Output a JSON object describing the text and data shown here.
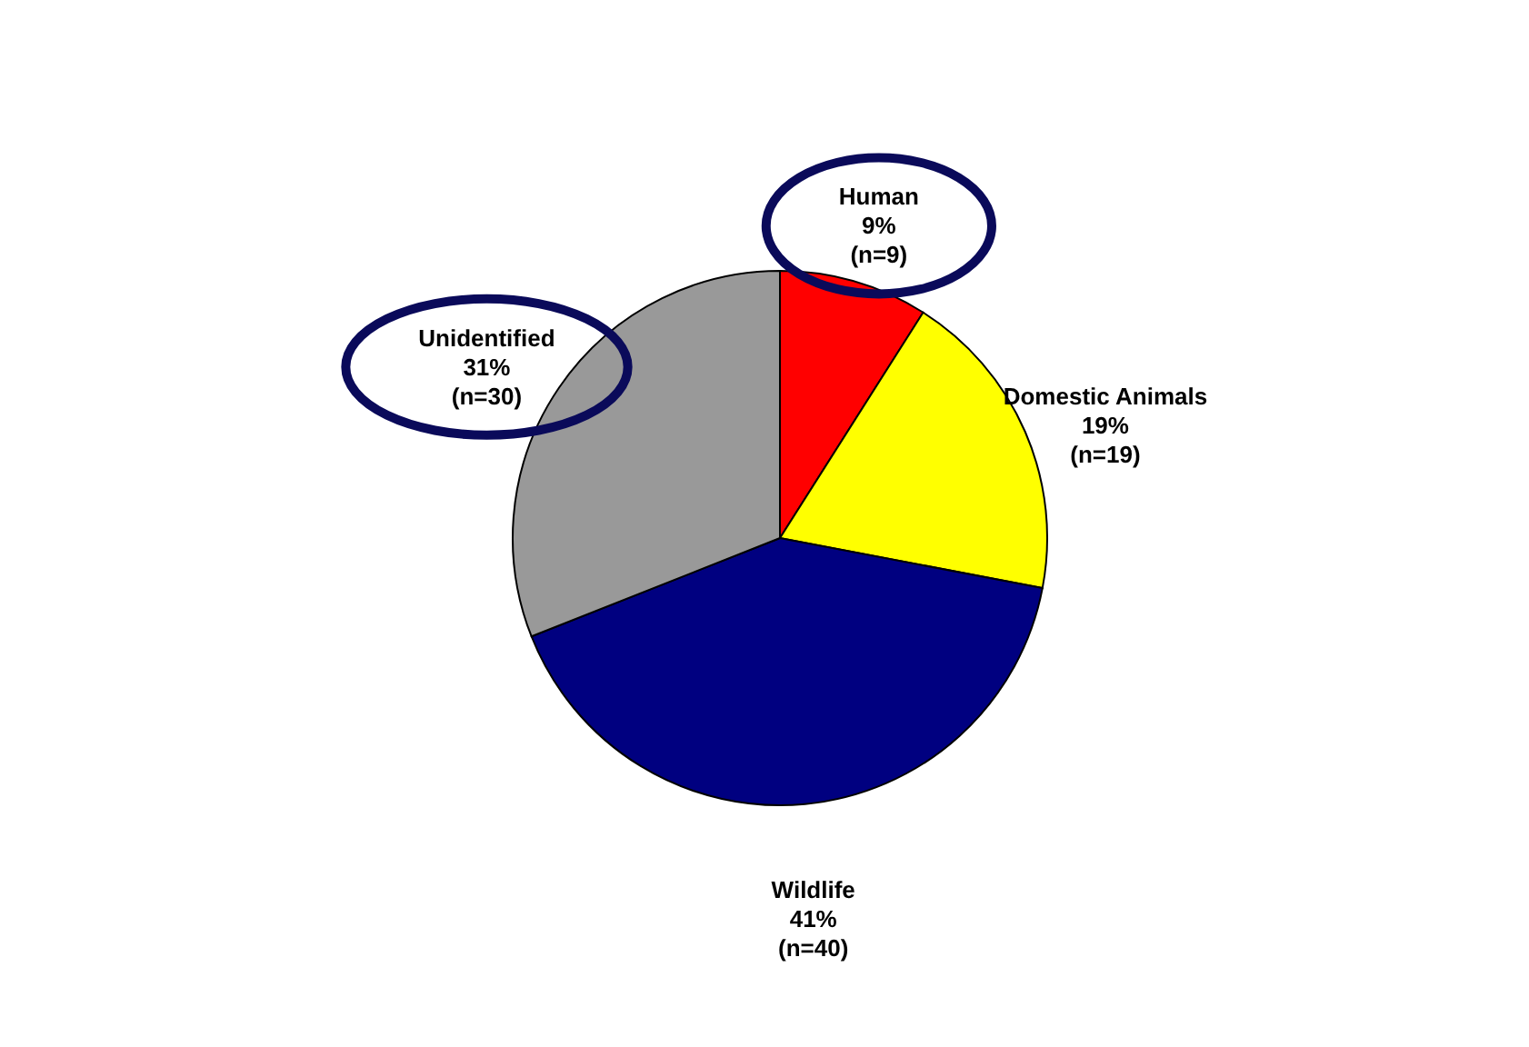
{
  "chart_data": {
    "type": "pie",
    "categories": [
      "Human",
      "Domestic Animals",
      "Wildlife",
      "Unidentified"
    ],
    "values": [
      9,
      19,
      41,
      31
    ],
    "value_labels": [
      "9%\n(n=9)",
      "19%\n(n=19)",
      "41%\n(n=40)",
      "31%\n(n=30)"
    ],
    "colors": [
      "#ff0000",
      "#ffff00",
      "#000080",
      "#999999"
    ]
  }
}
